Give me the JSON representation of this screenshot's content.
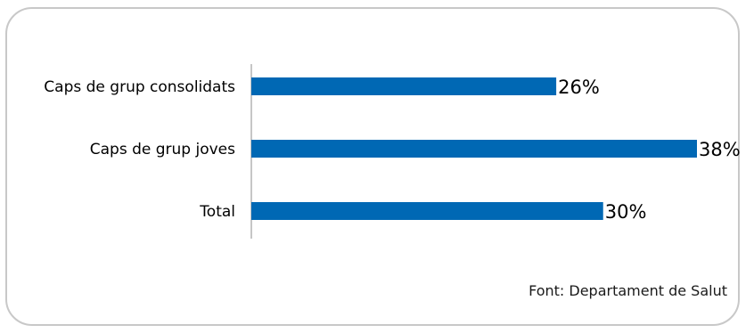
{
  "chart_data": {
    "type": "bar",
    "orientation": "horizontal",
    "categories": [
      "Caps de grup consolidats",
      "Caps de grup joves",
      "Total"
    ],
    "values": [
      26,
      38,
      30
    ],
    "value_labels": [
      "26%",
      "38%",
      "30%"
    ],
    "unit": "%",
    "xlim": [
      0,
      38
    ],
    "grid": false,
    "bar_color": "#0068b4",
    "title": "",
    "xlabel": "",
    "ylabel": ""
  },
  "source": "Font: Departament de Salut"
}
